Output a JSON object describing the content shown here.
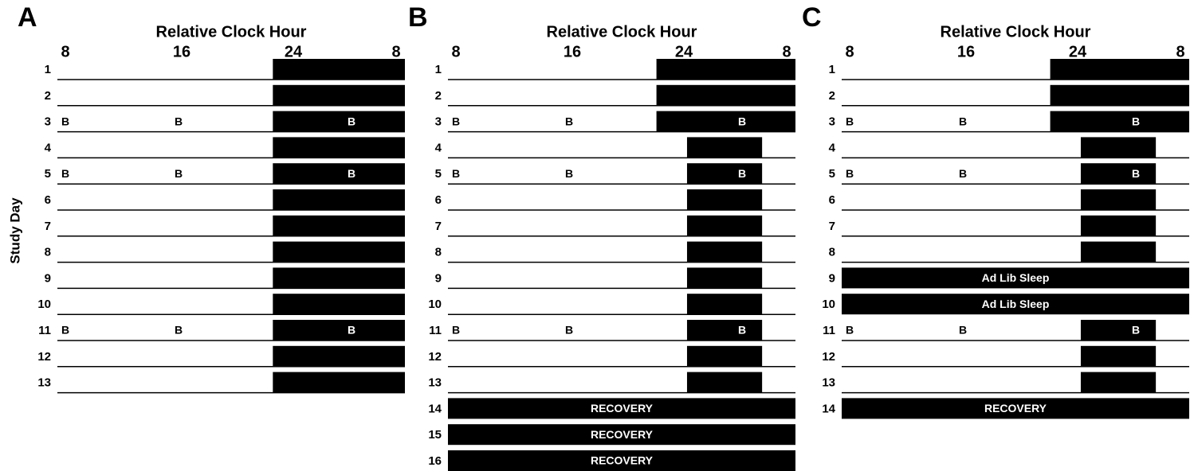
{
  "y_label": "Study Day",
  "panels": [
    {
      "letter": "A",
      "axis_title": "Relative Clock Hour",
      "ticks": [
        "8",
        "16",
        "24",
        "8"
      ],
      "rows": [
        {
          "day": "1",
          "sleep": [
            23,
            32.5
          ]
        },
        {
          "day": "2",
          "sleep": [
            23,
            32.5
          ]
        },
        {
          "day": "3",
          "markers": [
            "B",
            "B",
            "B"
          ],
          "sleep": [
            23,
            32.5
          ]
        },
        {
          "day": "4",
          "sleep": [
            23,
            32.5
          ]
        },
        {
          "day": "5",
          "markers": [
            "B",
            "B",
            "B"
          ],
          "sleep": [
            23,
            32.5
          ]
        },
        {
          "day": "6",
          "sleep": [
            23,
            32.5
          ]
        },
        {
          "day": "7",
          "sleep": [
            23,
            32.5
          ]
        },
        {
          "day": "8",
          "sleep": [
            23,
            32.5
          ]
        },
        {
          "day": "9",
          "sleep": [
            23,
            32.5
          ]
        },
        {
          "day": "10",
          "sleep": [
            23,
            32.5
          ]
        },
        {
          "day": "11",
          "markers": [
            "B",
            "B",
            "B"
          ],
          "sleep": [
            23,
            32.5
          ]
        },
        {
          "day": "12",
          "sleep": [
            23,
            32.5
          ]
        },
        {
          "day": "13",
          "sleep": [
            23,
            32.5
          ]
        }
      ]
    },
    {
      "letter": "B",
      "axis_title": "Relative Clock Hour",
      "ticks": [
        "8",
        "16",
        "24",
        "8"
      ],
      "rows": [
        {
          "day": "1",
          "sleep": [
            22.5,
            32.5
          ]
        },
        {
          "day": "2",
          "sleep": [
            22.5,
            32.5
          ]
        },
        {
          "day": "3",
          "markers": [
            "B",
            "B",
            "B"
          ],
          "sleep": [
            22.5,
            32.5
          ]
        },
        {
          "day": "4",
          "sleep": [
            24.7,
            30.1
          ]
        },
        {
          "day": "5",
          "markers": [
            "B",
            "B",
            "B"
          ],
          "sleep": [
            24.7,
            30.1
          ]
        },
        {
          "day": "6",
          "sleep": [
            24.7,
            30.1
          ]
        },
        {
          "day": "7",
          "sleep": [
            24.7,
            30.1
          ]
        },
        {
          "day": "8",
          "sleep": [
            24.7,
            30.1
          ]
        },
        {
          "day": "9",
          "sleep": [
            24.7,
            30.1
          ]
        },
        {
          "day": "10",
          "sleep": [
            24.7,
            30.1
          ]
        },
        {
          "day": "11",
          "markers": [
            "B",
            "B",
            "B"
          ],
          "sleep": [
            24.7,
            30.1
          ]
        },
        {
          "day": "12",
          "sleep": [
            24.7,
            30.1
          ]
        },
        {
          "day": "13",
          "sleep": [
            24.7,
            30.1
          ]
        },
        {
          "day": "14",
          "bar_label": "RECOVERY"
        },
        {
          "day": "15",
          "bar_label": "RECOVERY"
        },
        {
          "day": "16",
          "bar_label": "RECOVERY"
        }
      ]
    },
    {
      "letter": "C",
      "axis_title": "Relative Clock Hour",
      "ticks": [
        "8",
        "16",
        "24",
        "8"
      ],
      "rows": [
        {
          "day": "1",
          "sleep": [
            22.5,
            32.5
          ]
        },
        {
          "day": "2",
          "sleep": [
            22.5,
            32.5
          ]
        },
        {
          "day": "3",
          "markers": [
            "B",
            "B",
            "B"
          ],
          "sleep": [
            22.5,
            32.5
          ]
        },
        {
          "day": "4",
          "sleep": [
            24.7,
            30.1
          ]
        },
        {
          "day": "5",
          "markers": [
            "B",
            "B",
            "B"
          ],
          "sleep": [
            24.7,
            30.1
          ]
        },
        {
          "day": "6",
          "sleep": [
            24.7,
            30.1
          ]
        },
        {
          "day": "7",
          "sleep": [
            24.7,
            30.1
          ]
        },
        {
          "day": "8",
          "sleep": [
            24.7,
            30.1
          ]
        },
        {
          "day": "9",
          "bar_label": "Ad Lib Sleep"
        },
        {
          "day": "10",
          "bar_label": "Ad Lib Sleep"
        },
        {
          "day": "11",
          "markers": [
            "B",
            "B",
            "B"
          ],
          "sleep": [
            24.7,
            30.1
          ]
        },
        {
          "day": "12",
          "sleep": [
            24.7,
            30.1
          ]
        },
        {
          "day": "13",
          "sleep": [
            24.7,
            30.1
          ]
        },
        {
          "day": "14",
          "bar_label": "RECOVERY"
        }
      ]
    }
  ]
}
